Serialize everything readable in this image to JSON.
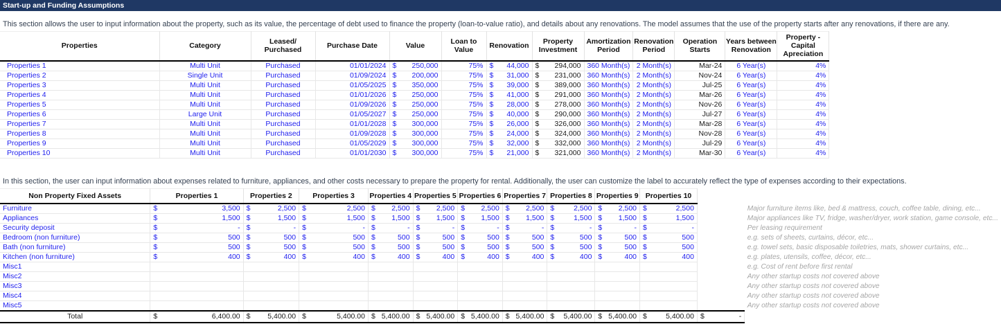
{
  "cur": "$",
  "title_bar": {
    "title": "Start-up and Funding Assumptions"
  },
  "section1": {
    "description": "This section allows the user to input information about the property, such as its value, the percentage of debt used to finance the property (loan-to-value ratio), and details about any renovations. The model assumes that the use of the property starts after any renovations, if there are any.",
    "headers": [
      "Properties",
      "Category",
      "Leased/\nPurchased",
      "Purchase Date",
      "Value",
      "Loan to Value",
      "Renovation",
      "Property\nInvestment",
      "Amortization\nPeriod",
      "Renovation\nPeriod",
      "Operation\nStarts",
      "Years between\nRenovation",
      "Property - Capital\nApreciation"
    ],
    "rows": [
      {
        "name": "Properties 1",
        "category": "Multi Unit",
        "leased": "Purchased",
        "date": "01/01/2024",
        "value": "250,000",
        "ltv": "75%",
        "renovation": "44,000",
        "investment": "294,000",
        "amortization": "360 Month(s)",
        "renovation_period": "2 Month(s)",
        "operation_starts": "Mar-24",
        "years_between": "6 Year(s)",
        "appreciation": "4%"
      },
      {
        "name": "Properties 2",
        "category": "Single Unit",
        "leased": "Purchased",
        "date": "01/09/2024",
        "value": "200,000",
        "ltv": "75%",
        "renovation": "31,000",
        "investment": "231,000",
        "amortization": "360 Month(s)",
        "renovation_period": "2 Month(s)",
        "operation_starts": "Nov-24",
        "years_between": "6 Year(s)",
        "appreciation": "4%"
      },
      {
        "name": "Properties 3",
        "category": "Multi Unit",
        "leased": "Purchased",
        "date": "01/05/2025",
        "value": "350,000",
        "ltv": "75%",
        "renovation": "39,000",
        "investment": "389,000",
        "amortization": "360 Month(s)",
        "renovation_period": "2 Month(s)",
        "operation_starts": "Jul-25",
        "years_between": "6 Year(s)",
        "appreciation": "4%"
      },
      {
        "name": "Properties 4",
        "category": "Multi Unit",
        "leased": "Purchased",
        "date": "01/01/2026",
        "value": "250,000",
        "ltv": "75%",
        "renovation": "41,000",
        "investment": "291,000",
        "amortization": "360 Month(s)",
        "renovation_period": "2 Month(s)",
        "operation_starts": "Mar-26",
        "years_between": "6 Year(s)",
        "appreciation": "4%"
      },
      {
        "name": "Properties 5",
        "category": "Multi Unit",
        "leased": "Purchased",
        "date": "01/09/2026",
        "value": "250,000",
        "ltv": "75%",
        "renovation": "28,000",
        "investment": "278,000",
        "amortization": "360 Month(s)",
        "renovation_period": "2 Month(s)",
        "operation_starts": "Nov-26",
        "years_between": "6 Year(s)",
        "appreciation": "4%"
      },
      {
        "name": "Properties 6",
        "category": "Large Unit",
        "leased": "Purchased",
        "date": "01/05/2027",
        "value": "250,000",
        "ltv": "75%",
        "renovation": "40,000",
        "investment": "290,000",
        "amortization": "360 Month(s)",
        "renovation_period": "2 Month(s)",
        "operation_starts": "Jul-27",
        "years_between": "6 Year(s)",
        "appreciation": "4%"
      },
      {
        "name": "Properties 7",
        "category": "Multi Unit",
        "leased": "Purchased",
        "date": "01/01/2028",
        "value": "300,000",
        "ltv": "75%",
        "renovation": "26,000",
        "investment": "326,000",
        "amortization": "360 Month(s)",
        "renovation_period": "2 Month(s)",
        "operation_starts": "Mar-28",
        "years_between": "6 Year(s)",
        "appreciation": "4%"
      },
      {
        "name": "Properties 8",
        "category": "Multi Unit",
        "leased": "Purchased",
        "date": "01/09/2028",
        "value": "300,000",
        "ltv": "75%",
        "renovation": "24,000",
        "investment": "324,000",
        "amortization": "360 Month(s)",
        "renovation_period": "2 Month(s)",
        "operation_starts": "Nov-28",
        "years_between": "6 Year(s)",
        "appreciation": "4%"
      },
      {
        "name": "Properties 9",
        "category": "Multi Unit",
        "leased": "Purchased",
        "date": "01/05/2029",
        "value": "300,000",
        "ltv": "75%",
        "renovation": "32,000",
        "investment": "332,000",
        "amortization": "360 Month(s)",
        "renovation_period": "2 Month(s)",
        "operation_starts": "Jul-29",
        "years_between": "6 Year(s)",
        "appreciation": "4%"
      },
      {
        "name": "Properties 10",
        "category": "Multi Unit",
        "leased": "Purchased",
        "date": "01/01/2030",
        "value": "300,000",
        "ltv": "75%",
        "renovation": "21,000",
        "investment": "321,000",
        "amortization": "360 Month(s)",
        "renovation_period": "2 Month(s)",
        "operation_starts": "Mar-30",
        "years_between": "6 Year(s)",
        "appreciation": "4%"
      }
    ]
  },
  "section2": {
    "description": "In this section, the user can input information about expenses related to furniture, appliances, and other costs necessary to prepare the property for rental. Additionally, the user can customize the label to accurately reflect the type of expenses according to their expectations.",
    "label_header": "Non Property Fixed Assets",
    "property_headers": [
      "Properties 1",
      "Properties 2",
      "Properties 3",
      "Properties 4",
      "Properties 5",
      "Properties 6",
      "Properties 7",
      "Properties 8",
      "Properties 9",
      "Properties 10"
    ],
    "rows": [
      {
        "label": "Furniture",
        "values": [
          "3,500",
          "2,500",
          "2,500",
          "2,500",
          "2,500",
          "2,500",
          "2,500",
          "2,500",
          "2,500",
          "2,500"
        ],
        "note": "Major furniture items like, bed & mattress, couch, coffee table, dining, etc..."
      },
      {
        "label": "Appliances",
        "values": [
          "1,500",
          "1,500",
          "1,500",
          "1,500",
          "1,500",
          "1,500",
          "1,500",
          "1,500",
          "1,500",
          "1,500"
        ],
        "note": "Major appliances like TV, fridge, washer/dryer, work station, game console, etc..."
      },
      {
        "label": "Security deposit",
        "values": [
          "-",
          "-",
          "-",
          "-",
          "-",
          "-",
          "-",
          "-",
          "-",
          "-"
        ],
        "note": "Per leasing requirement"
      },
      {
        "label": "Bedroom (non furniture)",
        "values": [
          "500",
          "500",
          "500",
          "500",
          "500",
          "500",
          "500",
          "500",
          "500",
          "500"
        ],
        "note": "e.g. sets of sheets, curtains, décor, etc..."
      },
      {
        "label": "Bath (non furniture)",
        "values": [
          "500",
          "500",
          "500",
          "500",
          "500",
          "500",
          "500",
          "500",
          "500",
          "500"
        ],
        "note": "e.g. towel sets, basic disposable toiletries, mats, shower curtains, etc..."
      },
      {
        "label": "Kitchen (non furniture)",
        "values": [
          "400",
          "400",
          "400",
          "400",
          "400",
          "400",
          "400",
          "400",
          "400",
          "400"
        ],
        "note": "e.g. plates, utensils, coffee, décor, etc..."
      },
      {
        "label": "Misc1",
        "values": [
          "",
          "",
          "",
          "",
          "",
          "",
          "",
          "",
          "",
          ""
        ],
        "note": "e.g. Cost of rent before first rental"
      },
      {
        "label": "Misc2",
        "values": [
          "",
          "",
          "",
          "",
          "",
          "",
          "",
          "",
          "",
          ""
        ],
        "note": "Any other startup costs not covered above"
      },
      {
        "label": "Misc3",
        "values": [
          "",
          "",
          "",
          "",
          "",
          "",
          "",
          "",
          "",
          ""
        ],
        "note": "Any other startup costs not covered above"
      },
      {
        "label": "Misc4",
        "values": [
          "",
          "",
          "",
          "",
          "",
          "",
          "",
          "",
          "",
          ""
        ],
        "note": "Any other startup costs not covered above"
      },
      {
        "label": "Misc5",
        "values": [
          "",
          "",
          "",
          "",
          "",
          "",
          "",
          "",
          "",
          ""
        ],
        "note": "Any other startup costs not covered above"
      }
    ],
    "total": {
      "label": "Total",
      "values": [
        "6,400.00",
        "5,400.00",
        "5,400.00",
        "5,400.00",
        "5,400.00",
        "5,400.00",
        "5,400.00",
        "5,400.00",
        "5,400.00",
        "5,400.00"
      ],
      "extra": "-"
    }
  }
}
